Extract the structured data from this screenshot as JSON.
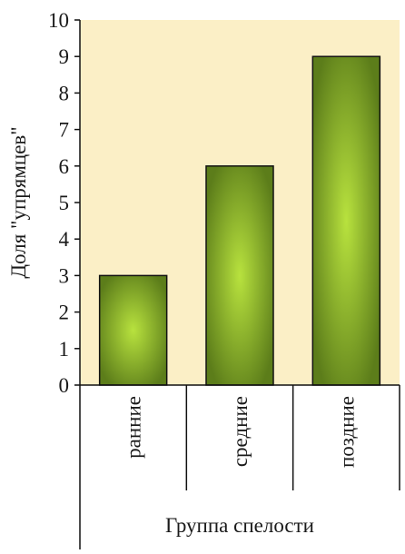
{
  "chart_data": {
    "type": "bar",
    "categories": [
      "ранние",
      "средние",
      "поздние"
    ],
    "values": [
      3,
      6,
      9
    ],
    "title": "",
    "xlabel": "Группа спелости",
    "ylabel": "Доля \"упрямцев\"",
    "ylim": [
      0,
      10
    ],
    "yticks": [
      0,
      1,
      2,
      3,
      4,
      5,
      6,
      7,
      8,
      9,
      10
    ],
    "grid": false,
    "legend": "none",
    "colors": {
      "plot_background": "#fbefc6",
      "bar_center": "#b8e23e",
      "bar_edge": "#5c7d1a",
      "bar_outline": "#111111"
    }
  }
}
